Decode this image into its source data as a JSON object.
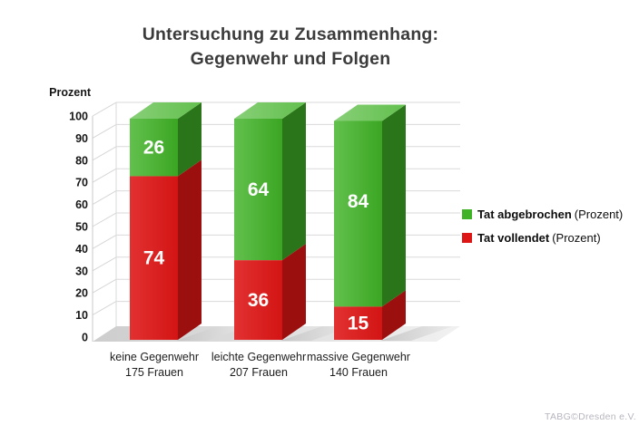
{
  "title": {
    "line1": "Untersuchung zu Zusammenhang:",
    "line2": "Gegenwehr und Folgen"
  },
  "y_axis": {
    "label": "Prozent",
    "ticks": [
      0,
      10,
      20,
      30,
      40,
      50,
      60,
      70,
      80,
      90,
      100
    ],
    "max": 100
  },
  "legend": {
    "items": [
      {
        "label": "Tat abgebrochen",
        "suffix": "(Prozent)",
        "color": "#3fb226"
      },
      {
        "label": "Tat vollendet",
        "suffix": "(Prozent)",
        "color": "#de1515"
      }
    ]
  },
  "watermark": "TABG©Dresden e.V.",
  "chart_data": {
    "type": "bar",
    "stacked": true,
    "style": "3d-column",
    "title": "Untersuchung zu Zusammenhang: Gegenwehr und Folgen",
    "ylabel": "Prozent",
    "ylim": [
      0,
      100
    ],
    "grid": true,
    "legend_position": "right",
    "categories": [
      {
        "line1": "keine Gegenwehr",
        "line2": "175 Frauen"
      },
      {
        "line1": "leichte Gegenwehr",
        "line2": "207 Frauen"
      },
      {
        "line1": "massive Gegenwehr",
        "line2": "140 Frauen"
      }
    ],
    "series": [
      {
        "name": "Tat vollendet (Prozent)",
        "color": "#de1515",
        "values": [
          74,
          36,
          15
        ]
      },
      {
        "name": "Tat abgebrochen (Prozent)",
        "color": "#3fb226",
        "values": [
          26,
          64,
          84
        ]
      }
    ]
  }
}
